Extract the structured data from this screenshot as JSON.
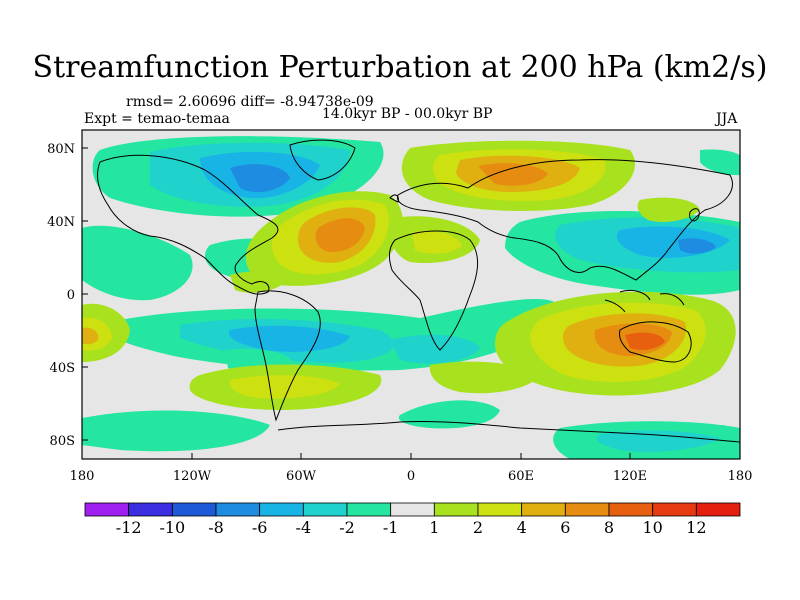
{
  "title": "Streamfunction Perturbation at 200 hPa (km2/s)",
  "stats": "rmsd= 2.60696 diff= -8.94738e-09",
  "expt": "Expt = temao-temaa",
  "period": "14.0kyr BP - 00.0kyr BP",
  "season": "JJA",
  "axes": {
    "lat_labels": [
      "80N",
      "40N",
      "0",
      "40S",
      "80S"
    ],
    "lon_labels": [
      "180",
      "120W",
      "60W",
      "0",
      "60E",
      "120E",
      "180"
    ]
  },
  "colorbar": {
    "labels": [
      "-12",
      "-10",
      "-8",
      "-6",
      "-4",
      "-2",
      "-1",
      "1",
      "2",
      "4",
      "6",
      "8",
      "10",
      "12"
    ],
    "colors": [
      "#a020f0",
      "#3a2ee0",
      "#1e5ad8",
      "#1e8ce0",
      "#18b4e6",
      "#20d2cc",
      "#24e6a0",
      "#e6e6e6",
      "#a8e21e",
      "#cde010",
      "#e0b010",
      "#e68c10",
      "#e66010",
      "#e63a10",
      "#e61e10"
    ]
  },
  "map_colors": {
    "background": "#e6e6e6",
    "neg1": "#24e6a0",
    "neg2": "#20d2cc",
    "neg3": "#18b4e6",
    "neg4": "#1e8ce0",
    "pos1": "#a8e21e",
    "pos2": "#cde010",
    "pos3": "#e0b010",
    "pos4": "#e68c10",
    "pos5": "#e66010"
  }
}
